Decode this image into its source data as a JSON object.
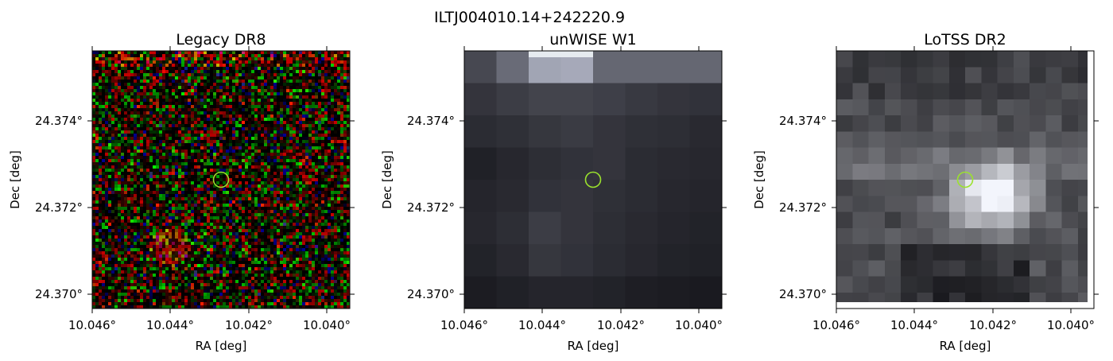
{
  "figure": {
    "title": "ILTJ004010.14+242220.9"
  },
  "panels": [
    {
      "title": "Legacy DR8",
      "xlabel": "RA [deg]",
      "ylabel": "Dec [deg]",
      "x_ticks": [
        "10.046°",
        "10.044°",
        "10.042°",
        "10.040°"
      ],
      "y_ticks": [
        "24.374°",
        "24.372°",
        "24.370°"
      ],
      "image": "rgb-noise",
      "marker_color": "#9be22d"
    },
    {
      "title": "unWISE W1",
      "xlabel": "RA [deg]",
      "ylabel": "Dec [deg]",
      "x_ticks": [
        "10.046°",
        "10.044°",
        "10.042°",
        "10.040°"
      ],
      "y_ticks": [
        "24.374°",
        "24.372°",
        "24.370°"
      ],
      "image": "grayscale-blocks",
      "marker_color": "#9be22d"
    },
    {
      "title": "LoTSS DR2",
      "xlabel": "RA [deg]",
      "ylabel": "Dec [deg]",
      "x_ticks": [
        "10.046°",
        "10.044°",
        "10.042°",
        "10.040°"
      ],
      "y_ticks": [
        "24.374°",
        "24.372°",
        "24.370°"
      ],
      "image": "grayscale-blocks",
      "marker_color": "#9be22d"
    }
  ],
  "wcs": {
    "ra_range": [
      10.0461,
      10.0395
    ],
    "dec_range": [
      24.3697,
      24.3755
    ],
    "marker": {
      "ra": 10.0428,
      "dec": 24.3726
    }
  }
}
